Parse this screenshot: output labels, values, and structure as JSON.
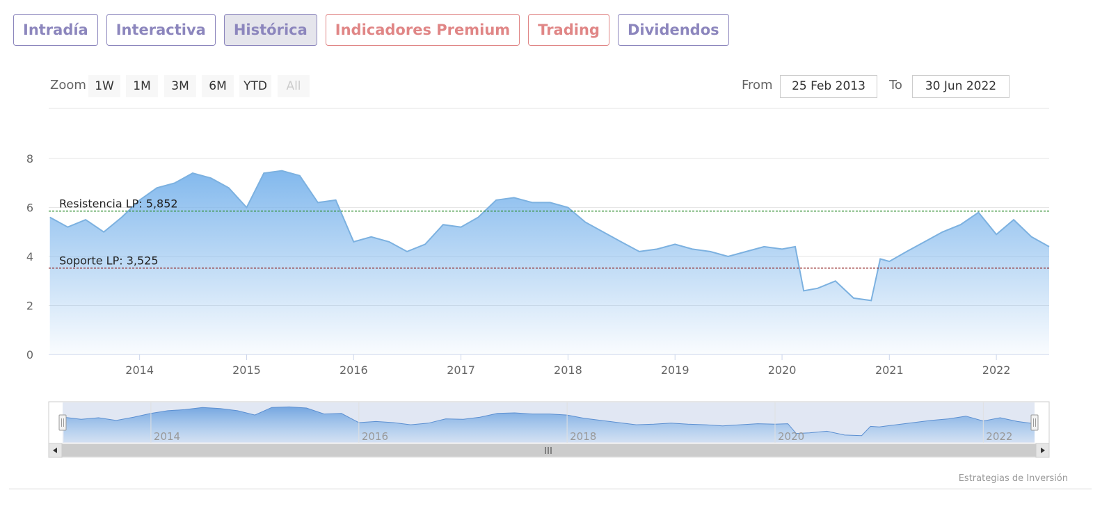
{
  "tabs": [
    {
      "label": "Intradía",
      "style": "purple",
      "active": false
    },
    {
      "label": "Interactiva",
      "style": "purple",
      "active": false
    },
    {
      "label": "Histórica",
      "style": "purple",
      "active": true
    },
    {
      "label": "Indicadores Premium",
      "style": "red",
      "active": false
    },
    {
      "label": "Trading",
      "style": "red",
      "active": false
    },
    {
      "label": "Dividendos",
      "style": "purple",
      "active": false
    }
  ],
  "range_selector": {
    "zoom_label": "Zoom",
    "buttons": [
      "1W",
      "1M",
      "3M",
      "6M",
      "YTD",
      "All"
    ],
    "disabled_button": "All",
    "from_label": "From",
    "from_value": "25 Feb 2013",
    "to_label": "To",
    "to_value": "30 Jun 2022"
  },
  "credits": "Estrategias de Inversión",
  "colors": {
    "series_line": "#7cb1e0",
    "area_top": "#7cb5ec",
    "resistance_line": "#2a8a2a",
    "support_line": "#8b1a1a",
    "navigator_mask": "#c8d3ea"
  },
  "chart_data": {
    "type": "area",
    "title": "",
    "xlabel": "",
    "ylabel": "",
    "x_range": [
      "2013-02-25",
      "2022-06-30"
    ],
    "ylim": [
      0,
      8
    ],
    "y_ticks": [
      0,
      2,
      4,
      6,
      8
    ],
    "x_ticks": [
      "2014",
      "2015",
      "2016",
      "2017",
      "2018",
      "2019",
      "2020",
      "2021",
      "2022"
    ],
    "navigator_ticks": [
      "2014",
      "2016",
      "2018",
      "2020",
      "2022"
    ],
    "grid": true,
    "legend": "none",
    "series": [
      {
        "x": [
          "2013-03-01",
          "2013-05-01",
          "2013-07-01",
          "2013-09-01",
          "2013-11-01",
          "2014-01-01",
          "2014-03-01",
          "2014-05-01",
          "2014-07-01",
          "2014-09-01",
          "2014-11-01",
          "2015-01-01",
          "2015-03-01",
          "2015-05-01",
          "2015-07-01",
          "2015-09-01",
          "2015-11-01",
          "2016-01-01",
          "2016-03-01",
          "2016-05-01",
          "2016-07-01",
          "2016-09-01",
          "2016-11-01",
          "2017-01-01",
          "2017-03-01",
          "2017-05-01",
          "2017-07-01",
          "2017-09-01",
          "2017-11-01",
          "2018-01-01",
          "2018-03-01",
          "2018-05-01",
          "2018-07-01",
          "2018-09-01",
          "2018-11-01",
          "2019-01-01",
          "2019-03-01",
          "2019-05-01",
          "2019-07-01",
          "2019-09-01",
          "2019-11-01",
          "2020-01-01",
          "2020-02-15",
          "2020-03-15",
          "2020-05-01",
          "2020-07-01",
          "2020-09-01",
          "2020-10-31",
          "2020-12-01",
          "2021-01-01",
          "2021-03-01",
          "2021-05-01",
          "2021-07-01",
          "2021-09-01",
          "2021-11-01",
          "2022-01-01",
          "2022-03-01",
          "2022-05-01",
          "2022-06-30"
        ],
        "values": [
          5.6,
          5.2,
          5.5,
          5.0,
          5.6,
          6.3,
          6.8,
          7.0,
          7.4,
          7.2,
          6.8,
          6.0,
          7.4,
          7.5,
          7.3,
          6.2,
          6.3,
          4.6,
          4.8,
          4.6,
          4.2,
          4.5,
          5.3,
          5.2,
          5.6,
          6.3,
          6.4,
          6.2,
          6.2,
          6.0,
          5.4,
          5.0,
          4.6,
          4.2,
          4.3,
          4.5,
          4.3,
          4.2,
          4.0,
          4.2,
          4.4,
          4.3,
          4.4,
          2.6,
          2.7,
          3.0,
          2.3,
          2.2,
          3.9,
          3.8,
          4.2,
          4.6,
          5.0,
          5.3,
          5.8,
          4.9,
          5.5,
          4.8,
          4.4
        ]
      }
    ],
    "annotations": [
      {
        "label": "Resistencia LP: 5,852",
        "value": 5.852
      },
      {
        "label": "Soporte LP: 3,525",
        "value": 3.525
      }
    ]
  }
}
